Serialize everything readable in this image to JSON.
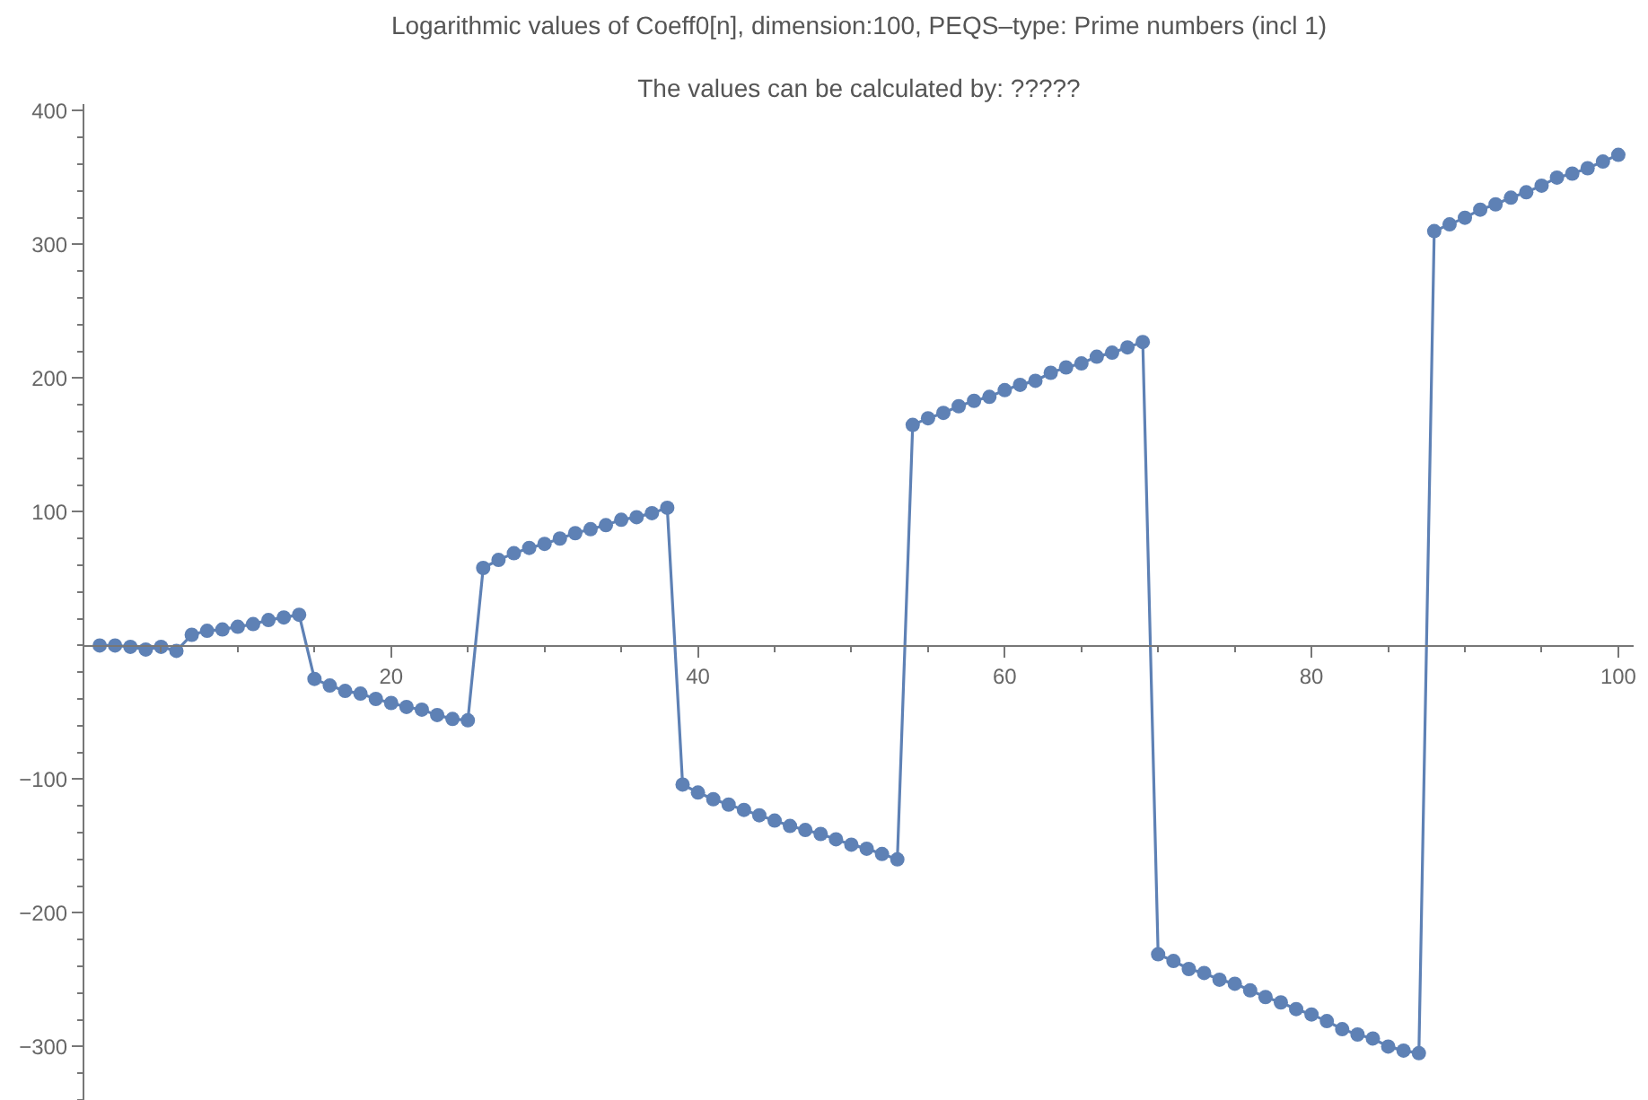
{
  "chart_data": {
    "type": "line",
    "title": "Logarithmic values of Coeff0[n], dimension:100, PEQS–type: Prime numbers (incl 1)",
    "subtitle": "The values can be calculated by: ?????",
    "x": [
      1,
      2,
      3,
      4,
      5,
      6,
      7,
      8,
      9,
      10,
      11,
      12,
      13,
      14,
      15,
      16,
      17,
      18,
      19,
      20,
      21,
      22,
      23,
      24,
      25,
      26,
      27,
      28,
      29,
      30,
      31,
      32,
      33,
      34,
      35,
      36,
      37,
      38,
      39,
      40,
      41,
      42,
      43,
      44,
      45,
      46,
      47,
      48,
      49,
      50,
      51,
      52,
      53,
      54,
      55,
      56,
      57,
      58,
      59,
      60,
      61,
      62,
      63,
      64,
      65,
      66,
      67,
      68,
      69,
      70,
      71,
      72,
      73,
      74,
      75,
      76,
      77,
      78,
      79,
      80,
      81,
      82,
      83,
      84,
      85,
      86,
      87,
      88,
      89,
      90,
      91,
      92,
      93,
      94,
      95,
      96,
      97,
      98,
      99,
      100
    ],
    "series": [
      {
        "color": "#5e81b5",
        "values": [
          0,
          0,
          -1,
          -3,
          -1,
          -4,
          8,
          11,
          12,
          14,
          16,
          19,
          21,
          23,
          -25,
          -30,
          -34,
          -36,
          -40,
          -43,
          -46,
          -48,
          -52,
          -55,
          -56,
          58,
          64,
          69,
          73,
          76,
          80,
          84,
          87,
          90,
          94,
          96,
          99,
          103,
          -104,
          -110,
          -115,
          -119,
          -123,
          -127,
          -131,
          -135,
          -138,
          -141,
          -145,
          -149,
          -152,
          -156,
          -160,
          165,
          170,
          174,
          179,
          183,
          186,
          191,
          195,
          198,
          204,
          208,
          211,
          216,
          219,
          223,
          227,
          -231,
          -236,
          -242,
          -245,
          -250,
          -253,
          -258,
          -263,
          -267,
          -272,
          -276,
          -281,
          -287,
          -291,
          -294,
          -300,
          -303,
          -305,
          310,
          315,
          320,
          326,
          330,
          335,
          339,
          344,
          350,
          353,
          357,
          362,
          367
        ]
      }
    ],
    "xlim": [
      0,
      101
    ],
    "ylim": [
      -340,
      405
    ],
    "xticks": [
      {
        "value": 5,
        "label": null
      },
      {
        "value": 10,
        "label": null
      },
      {
        "value": 15,
        "label": null
      },
      20,
      {
        "value": 25,
        "label": null
      },
      {
        "value": 30,
        "label": null
      },
      {
        "value": 35,
        "label": null
      },
      40,
      {
        "value": 45,
        "label": null
      },
      {
        "value": 50,
        "label": null
      },
      {
        "value": 55,
        "label": null
      },
      60,
      {
        "value": 65,
        "label": null
      },
      {
        "value": 70,
        "label": null
      },
      {
        "value": 75,
        "label": null
      },
      80,
      {
        "value": 85,
        "label": null
      },
      {
        "value": 90,
        "label": null
      },
      {
        "value": 95,
        "label": null
      },
      100
    ],
    "yticks": [
      {
        "value": -340,
        "label": null
      },
      {
        "value": -320,
        "label": null
      },
      {
        "value": -300,
        "label": "−300"
      },
      {
        "value": -280,
        "label": null
      },
      {
        "value": -260,
        "label": null
      },
      {
        "value": -240,
        "label": null
      },
      {
        "value": -220,
        "label": null
      },
      {
        "value": -200,
        "label": "−200"
      },
      {
        "value": -180,
        "label": null
      },
      {
        "value": -160,
        "label": null
      },
      {
        "value": -140,
        "label": null
      },
      {
        "value": -120,
        "label": null
      },
      {
        "value": -100,
        "label": "−100"
      },
      {
        "value": -80,
        "label": null
      },
      {
        "value": -60,
        "label": null
      },
      {
        "value": -40,
        "label": null
      },
      {
        "value": -20,
        "label": null
      },
      {
        "value": 0,
        "label": null
      },
      {
        "value": 20,
        "label": null
      },
      {
        "value": 40,
        "label": null
      },
      {
        "value": 60,
        "label": null
      },
      {
        "value": 80,
        "label": null
      },
      100,
      {
        "value": 120,
        "label": null
      },
      {
        "value": 140,
        "label": null
      },
      {
        "value": 160,
        "label": null
      },
      {
        "value": 180,
        "label": null
      },
      200,
      {
        "value": 220,
        "label": null
      },
      {
        "value": 240,
        "label": null
      },
      {
        "value": 260,
        "label": null
      },
      {
        "value": 280,
        "label": null
      },
      300,
      {
        "value": 320,
        "label": null
      },
      {
        "value": 340,
        "label": null
      },
      {
        "value": 360,
        "label": null
      },
      {
        "value": 380,
        "label": null
      },
      400
    ],
    "marker": "circle",
    "line_style": "solid"
  }
}
